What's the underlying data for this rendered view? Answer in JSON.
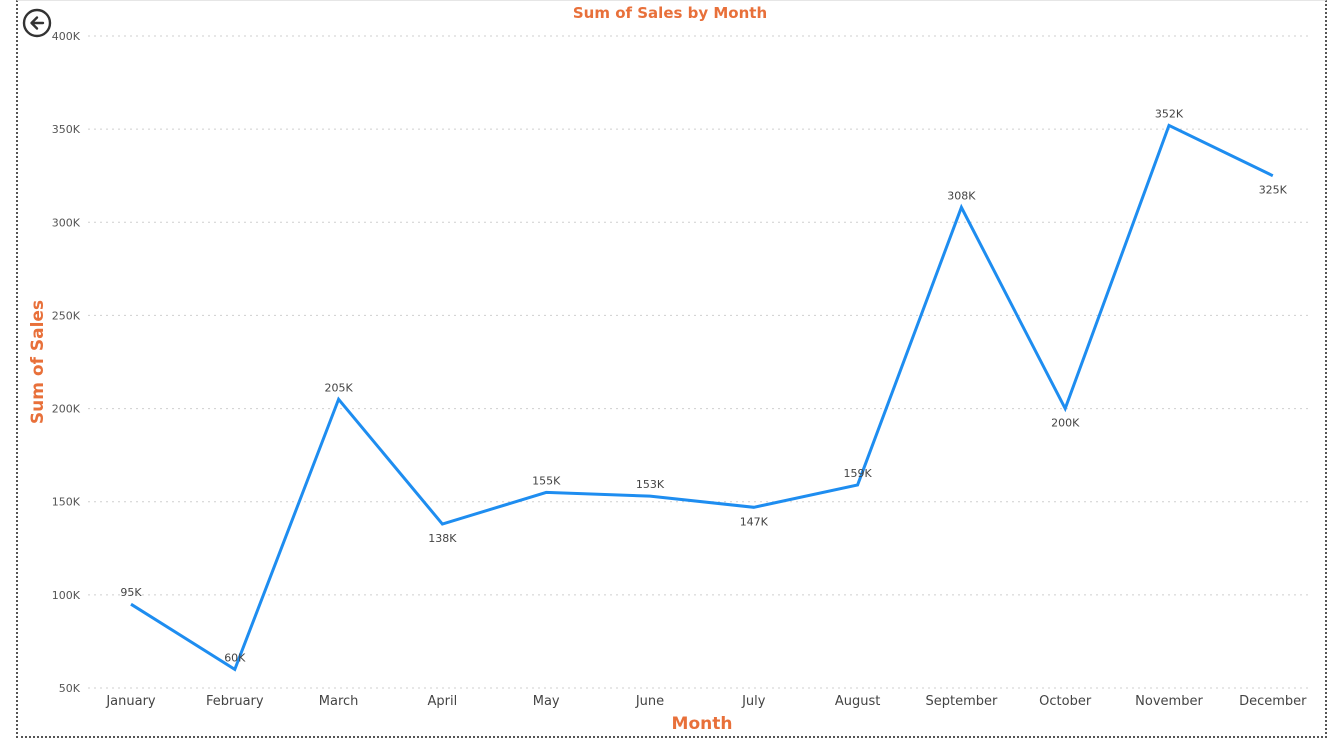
{
  "chart_data": {
    "type": "line",
    "title": "Sum of Sales by Month",
    "xlabel": "Month",
    "ylabel": "Sum of Sales",
    "ylim": [
      50000,
      400000
    ],
    "yticks": [
      50000,
      100000,
      150000,
      200000,
      250000,
      300000,
      350000,
      400000
    ],
    "ytick_labels": [
      "50K",
      "100K",
      "150K",
      "200K",
      "250K",
      "300K",
      "350K",
      "400K"
    ],
    "categories": [
      "January",
      "February",
      "March",
      "April",
      "May",
      "June",
      "July",
      "August",
      "September",
      "October",
      "November",
      "December"
    ],
    "series": [
      {
        "values": [
          95000,
          60000,
          205000,
          138000,
          155000,
          153000,
          147000,
          159000,
          308000,
          200000,
          352000,
          325000
        ],
        "labels": [
          "95K",
          "60K",
          "205K",
          "138K",
          "155K",
          "153K",
          "147K",
          "159K",
          "308K",
          "200K",
          "352K",
          "325K"
        ],
        "color": "#1E8DF0"
      }
    ],
    "label_placement": [
      "above",
      "above",
      "above",
      "below",
      "above",
      "above",
      "below",
      "above",
      "above",
      "below",
      "above",
      "below"
    ],
    "grid": true,
    "legend": "none"
  },
  "ui": {
    "back_icon": "back-arrow-icon"
  }
}
